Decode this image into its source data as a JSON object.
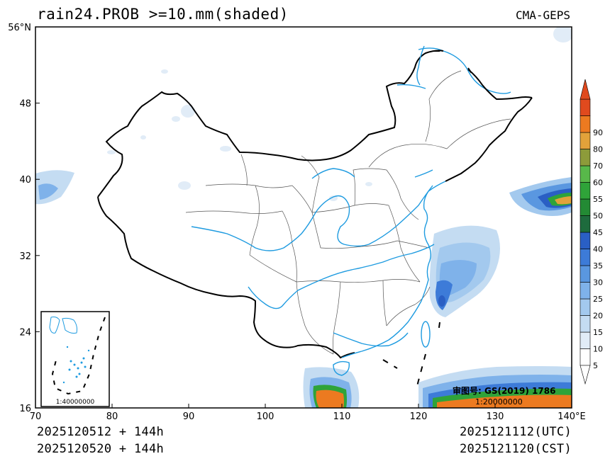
{
  "header": {
    "title": "rain24.PROB >=10.mm(shaded)",
    "source": "CMA-GEPS"
  },
  "footer": {
    "init_utc": "2025120512 + 144h",
    "init_cst": "2025120520 + 144h",
    "valid_utc": "2025121112(UTC)",
    "valid_cst": "2025121120(CST)"
  },
  "axes": {
    "lon_labels": [
      "70",
      "80",
      "90",
      "100",
      "110",
      "120",
      "130",
      "140°E"
    ],
    "lat_labels": [
      "16",
      "24",
      "32",
      "40",
      "48",
      "56°N"
    ],
    "lon_values": [
      70,
      80,
      90,
      100,
      110,
      120,
      130,
      140
    ],
    "lat_values": [
      16,
      24,
      32,
      40,
      48,
      56
    ]
  },
  "colorbar": {
    "levels": [
      "5",
      "10",
      "15",
      "20",
      "25",
      "30",
      "35",
      "40",
      "45",
      "50",
      "55",
      "60",
      "70",
      "80",
      "90"
    ],
    "colors": [
      "#ffffff",
      "#e1ecf7",
      "#c4dcf2",
      "#a3c9ee",
      "#7fb2ea",
      "#5a97e0",
      "#3d7bd8",
      "#2a5fc4",
      "#1e6b3d",
      "#238a34",
      "#2fa339",
      "#58b84a",
      "#8d9b3a",
      "#e2a23a",
      "#ec7a20",
      "#e04a1e"
    ]
  },
  "inset": {
    "scale": "1:40000000"
  },
  "annotation": {
    "approval": "审图号: GS(2019) 1786",
    "scale": "1:20000000"
  },
  "colors": {
    "river": "#1e9be0",
    "border": "#000000",
    "province": "#555555"
  }
}
